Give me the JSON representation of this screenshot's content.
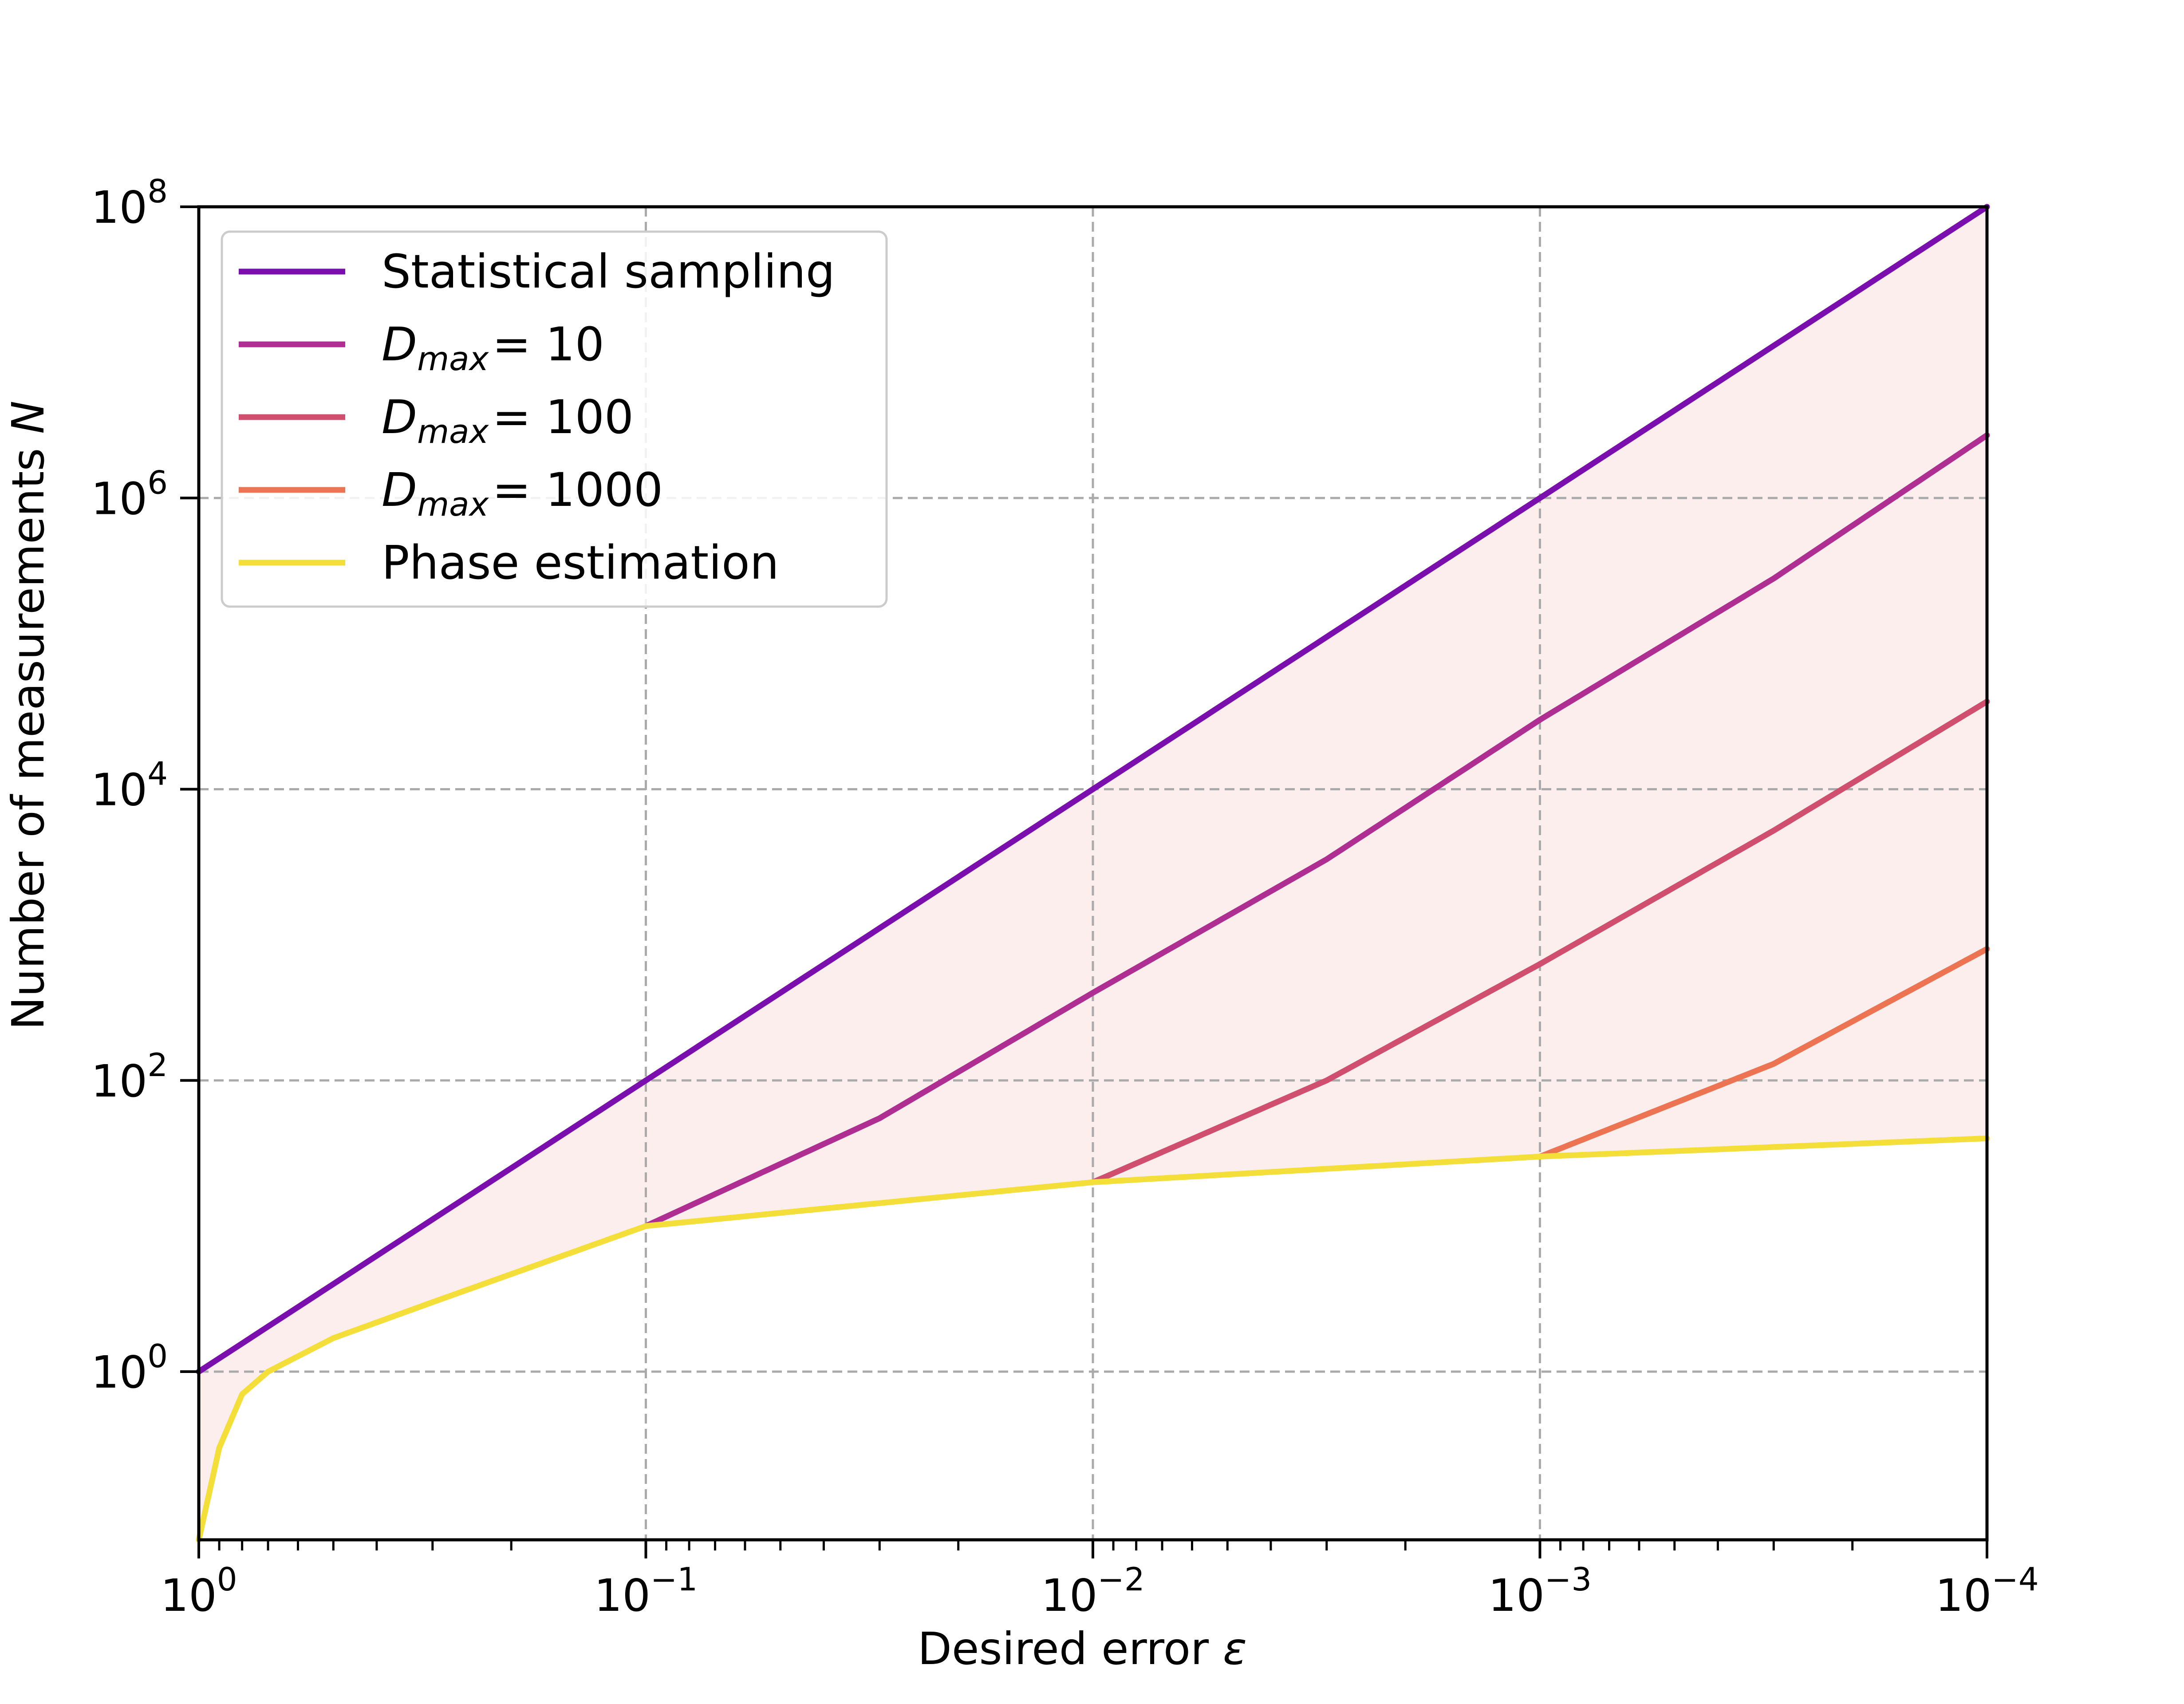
{
  "chart_data": {
    "type": "line",
    "xlabel": "Desired error",
    "xlabel_symbol": "ε",
    "ylabel": "Number of measurements",
    "ylabel_symbol": "N",
    "x_scale": "log",
    "y_scale": "log",
    "x_reversed": true,
    "xlim": [
      1,
      0.0001
    ],
    "ylim": [
      0.07,
      100000000
    ],
    "grid": true,
    "legend_position": "top-left",
    "x_ticks": [
      {
        "base": "10",
        "exp": "0"
      },
      {
        "base": "10",
        "exp": "−1"
      },
      {
        "base": "10",
        "exp": "−2"
      },
      {
        "base": "10",
        "exp": "−3"
      },
      {
        "base": "10",
        "exp": "−4"
      }
    ],
    "y_ticks": [
      {
        "base": "10",
        "exp": "0"
      },
      {
        "base": "10",
        "exp": "2"
      },
      {
        "base": "10",
        "exp": "4"
      },
      {
        "base": "10",
        "exp": "6"
      },
      {
        "base": "10",
        "exp": "8"
      }
    ],
    "shaded_region": {
      "between": [
        "Statistical sampling",
        "Phase estimation"
      ],
      "color": "#fdeeee"
    },
    "series": [
      {
        "name": "Statistical sampling",
        "color": "#7a0fae",
        "x": [
          1,
          0.1,
          0.01,
          0.001,
          0.0001
        ],
        "y": [
          1,
          100,
          10000,
          1000000,
          100000000
        ]
      },
      {
        "name_main": "D",
        "name_sub": "max",
        "name_value": "= 10",
        "color": "#ae2e92",
        "x": [
          0.1,
          0.03,
          0.01,
          0.003,
          0.001,
          0.0003,
          0.0001
        ],
        "y": [
          10,
          55,
          400,
          3300,
          30000,
          280000,
          2700000
        ]
      },
      {
        "name_main": "D",
        "name_sub": "max",
        "name_value": "= 100",
        "color": "#d04e6e",
        "x": [
          0.01,
          0.003,
          0.001,
          0.0003,
          0.0001
        ],
        "y": [
          20,
          100,
          630,
          5200,
          40000
        ]
      },
      {
        "name_main": "D",
        "name_sub": "max",
        "name_value": "= 1000",
        "color": "#ec7453",
        "x": [
          0.001,
          0.0003,
          0.0001
        ],
        "y": [
          30,
          130,
          800
        ]
      },
      {
        "name": "Phase estimation",
        "color": "#f4df3a",
        "x": [
          1,
          0.9,
          0.8,
          0.7,
          0.5,
          0.3,
          0.1,
          0.01,
          0.001,
          0.0001
        ],
        "y": [
          0.07,
          0.3,
          0.7,
          1.0,
          1.7,
          3.0,
          10,
          20,
          30,
          40
        ]
      }
    ]
  }
}
